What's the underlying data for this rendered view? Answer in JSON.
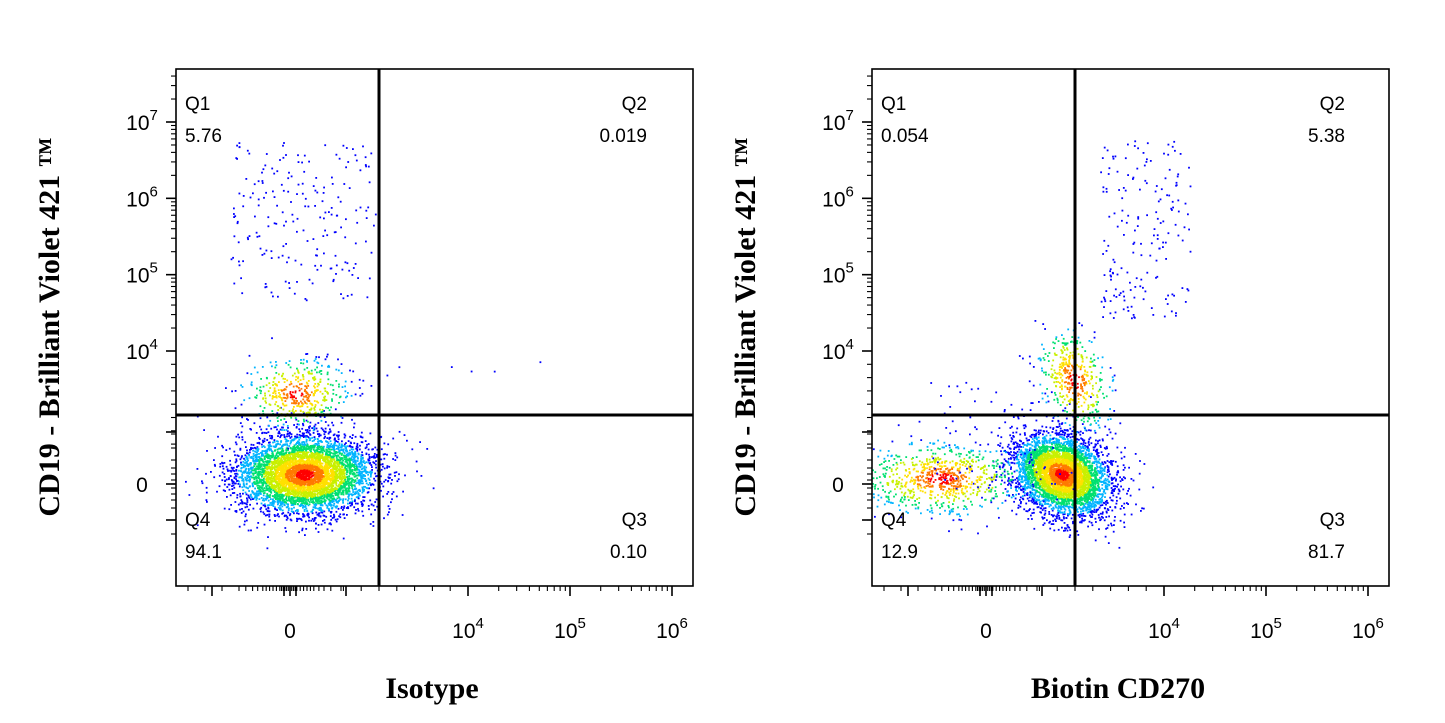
{
  "chart_data": [
    {
      "type": "scatter",
      "subtype": "flow-cytometry-density-dot-plot",
      "xlabel": "Isotype",
      "ylabel": "CD19 - Brilliant Violet 421 ™",
      "x_scale": "biexponential",
      "y_scale": "biexponential",
      "x_ticks": [
        {
          "value": 0,
          "label": "0",
          "exp": ""
        },
        {
          "value": 10000,
          "label": "10",
          "exp": "4"
        },
        {
          "value": 100000,
          "label": "10",
          "exp": "5"
        },
        {
          "value": 1000000,
          "label": "10",
          "exp": "6"
        }
      ],
      "y_ticks": [
        {
          "value": 0,
          "label": "0",
          "exp": ""
        },
        {
          "value": 10000,
          "label": "10",
          "exp": "4"
        },
        {
          "value": 100000,
          "label": "10",
          "exp": "5"
        },
        {
          "value": 1000000,
          "label": "10",
          "exp": "6"
        },
        {
          "value": 10000000,
          "label": "10",
          "exp": "7"
        }
      ],
      "quadrants": [
        {
          "name": "Q1",
          "percent": "5.76"
        },
        {
          "name": "Q2",
          "percent": "0.019"
        },
        {
          "name": "Q3",
          "percent": "0.10"
        },
        {
          "name": "Q4",
          "percent": "94.1"
        }
      ],
      "gate": {
        "x": 1500,
        "y": 2000
      },
      "populations": [
        {
          "label": "CD19-negative, isotype-negative",
          "center_x": 0,
          "center_y": 0,
          "share": 0.941
        },
        {
          "label": "CD19-positive, isotype-negative",
          "center_x": 0,
          "center_y": 7000,
          "share": 0.0576
        }
      ],
      "color_scale": [
        "#0000ff",
        "#00b4ff",
        "#00e070",
        "#c8f000",
        "#ffe000",
        "#ff7a00",
        "#ff0000"
      ]
    },
    {
      "type": "scatter",
      "subtype": "flow-cytometry-density-dot-plot",
      "xlabel": "Biotin CD270",
      "ylabel": "CD19 - Brilliant Violet 421 ™",
      "x_scale": "biexponential",
      "y_scale": "biexponential",
      "x_ticks": [
        {
          "value": 0,
          "label": "0",
          "exp": ""
        },
        {
          "value": 10000,
          "label": "10",
          "exp": "4"
        },
        {
          "value": 100000,
          "label": "10",
          "exp": "5"
        },
        {
          "value": 1000000,
          "label": "10",
          "exp": "6"
        }
      ],
      "y_ticks": [
        {
          "value": 0,
          "label": "0",
          "exp": ""
        },
        {
          "value": 10000,
          "label": "10",
          "exp": "4"
        },
        {
          "value": 100000,
          "label": "10",
          "exp": "5"
        },
        {
          "value": 1000000,
          "label": "10",
          "exp": "6"
        },
        {
          "value": 10000000,
          "label": "10",
          "exp": "7"
        }
      ],
      "quadrants": [
        {
          "name": "Q1",
          "percent": "0.054"
        },
        {
          "name": "Q2",
          "percent": "5.38"
        },
        {
          "name": "Q3",
          "percent": "81.7"
        },
        {
          "name": "Q4",
          "percent": "12.9"
        }
      ],
      "gate": {
        "x": 1500,
        "y": 2000
      },
      "populations": [
        {
          "label": "CD19-negative, CD270-positive",
          "center_x": 3000,
          "center_y": 0,
          "share": 0.817
        },
        {
          "label": "CD19-negative, CD270-negative",
          "center_x": 800,
          "center_y": 0,
          "share": 0.129
        },
        {
          "label": "CD19-positive, CD270-positive",
          "center_x": 5500,
          "center_y": 8000,
          "share": 0.0538
        }
      ],
      "color_scale": [
        "#0000ff",
        "#00b4ff",
        "#00e070",
        "#c8f000",
        "#ffe000",
        "#ff7a00",
        "#ff0000"
      ]
    }
  ]
}
